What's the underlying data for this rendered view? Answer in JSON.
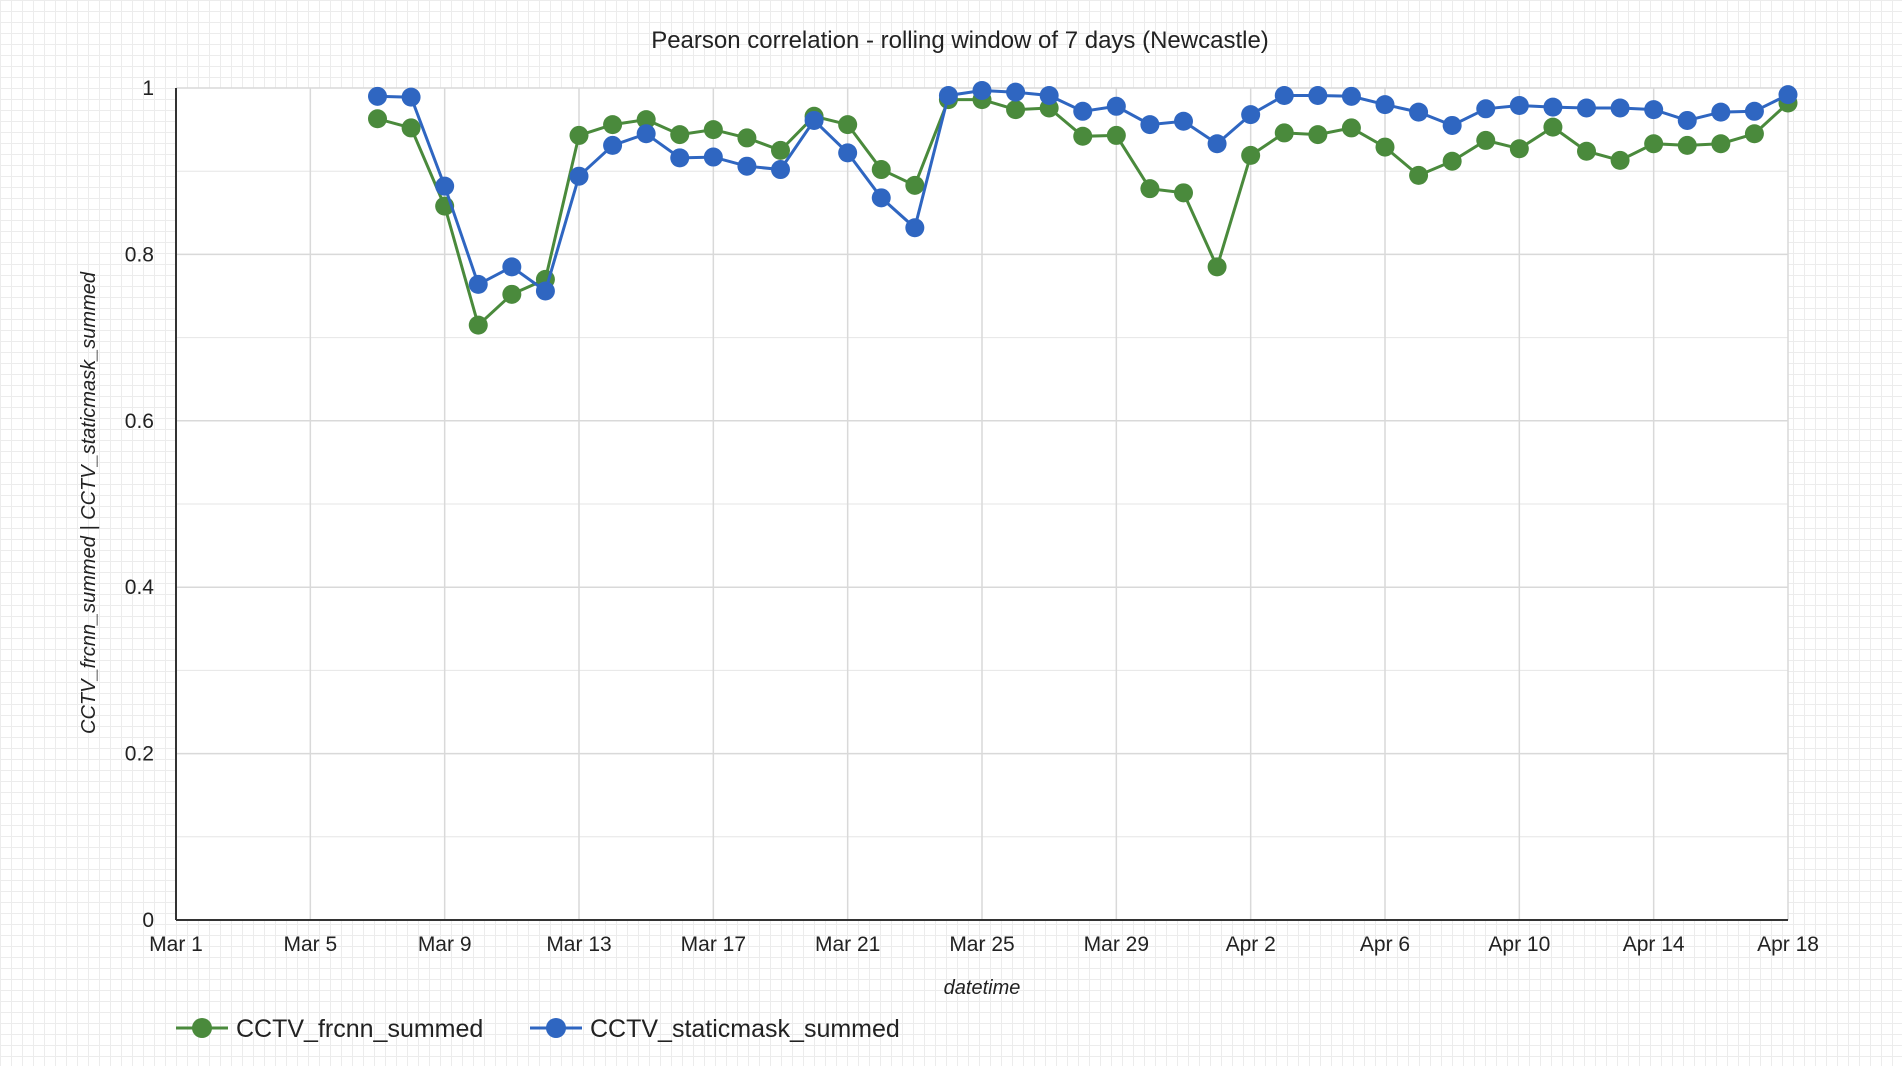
{
  "chart_data": {
    "type": "line",
    "title": "Pearson correlation - rolling window of 7 days (Newcastle)",
    "xlabel": "datetime",
    "ylabel": "CCTV_frcnn_summed | CCTV_staticmask_summed",
    "x_start": "Mar 1",
    "xlim": [
      "Mar 1",
      "Apr 18"
    ],
    "ylim": [
      0,
      1
    ],
    "x_tick_labels": [
      "Mar 1",
      "Mar 5",
      "Mar 9",
      "Mar 13",
      "Mar 17",
      "Mar 21",
      "Mar 25",
      "Mar 29",
      "Apr 2",
      "Apr 6",
      "Apr 10",
      "Apr 14",
      "Apr 18"
    ],
    "y_ticks": [
      0,
      0.2,
      0.4,
      0.6,
      0.8,
      1
    ],
    "y_tick_labels": [
      "0",
      "0.2",
      "0.4",
      "0.6",
      "0.8",
      "1"
    ],
    "grid": true,
    "legend_position": "bottom-left",
    "series": [
      {
        "name": "CCTV_frcnn_summed",
        "color": "#4a8a3c",
        "x": [
          "Mar 7",
          "Mar 8",
          "Mar 9",
          "Mar 10",
          "Mar 11",
          "Mar 12",
          "Mar 13",
          "Mar 14",
          "Mar 15",
          "Mar 16",
          "Mar 17",
          "Mar 18",
          "Mar 19",
          "Mar 20",
          "Mar 21",
          "Mar 22",
          "Mar 23",
          "Mar 24",
          "Mar 25",
          "Mar 26",
          "Mar 27",
          "Mar 28",
          "Mar 29",
          "Mar 30",
          "Mar 31",
          "Apr 1",
          "Apr 2",
          "Apr 3",
          "Apr 4",
          "Apr 5",
          "Apr 6",
          "Apr 7",
          "Apr 8",
          "Apr 9",
          "Apr 10",
          "Apr 11",
          "Apr 12",
          "Apr 13",
          "Apr 14",
          "Apr 15",
          "Apr 16",
          "Apr 17",
          "Apr 18"
        ],
        "values": [
          0.963,
          0.952,
          0.858,
          0.715,
          0.752,
          0.77,
          0.943,
          0.956,
          0.962,
          0.944,
          0.95,
          0.94,
          0.925,
          0.966,
          0.956,
          0.902,
          0.883,
          0.986,
          0.986,
          0.974,
          0.976,
          0.942,
          0.943,
          0.879,
          0.874,
          0.785,
          0.919,
          0.946,
          0.944,
          0.952,
          0.929,
          0.895,
          0.912,
          0.937,
          0.927,
          0.953,
          0.924,
          0.913,
          0.933,
          0.931,
          0.933,
          0.945,
          0.982
        ]
      },
      {
        "name": "CCTV_staticmask_summed",
        "color": "#2f66c1",
        "x": [
          "Mar 7",
          "Mar 8",
          "Mar 9",
          "Mar 10",
          "Mar 11",
          "Mar 12",
          "Mar 13",
          "Mar 14",
          "Mar 15",
          "Mar 16",
          "Mar 17",
          "Mar 18",
          "Mar 19",
          "Mar 20",
          "Mar 21",
          "Mar 22",
          "Mar 23",
          "Mar 24",
          "Mar 25",
          "Mar 26",
          "Mar 27",
          "Mar 28",
          "Mar 29",
          "Mar 30",
          "Mar 31",
          "Apr 1",
          "Apr 2",
          "Apr 3",
          "Apr 4",
          "Apr 5",
          "Apr 6",
          "Apr 7",
          "Apr 8",
          "Apr 9",
          "Apr 10",
          "Apr 11",
          "Apr 12",
          "Apr 13",
          "Apr 14",
          "Apr 15",
          "Apr 16",
          "Apr 17",
          "Apr 18"
        ],
        "values": [
          0.99,
          0.989,
          0.882,
          0.764,
          0.785,
          0.756,
          0.894,
          0.931,
          0.945,
          0.916,
          0.917,
          0.906,
          0.902,
          0.961,
          0.922,
          0.868,
          0.832,
          0.991,
          0.997,
          0.995,
          0.991,
          0.972,
          0.978,
          0.956,
          0.96,
          0.933,
          0.968,
          0.991,
          0.991,
          0.99,
          0.98,
          0.971,
          0.955,
          0.975,
          0.979,
          0.977,
          0.976,
          0.976,
          0.974,
          0.961,
          0.971,
          0.972,
          0.992
        ]
      }
    ]
  }
}
